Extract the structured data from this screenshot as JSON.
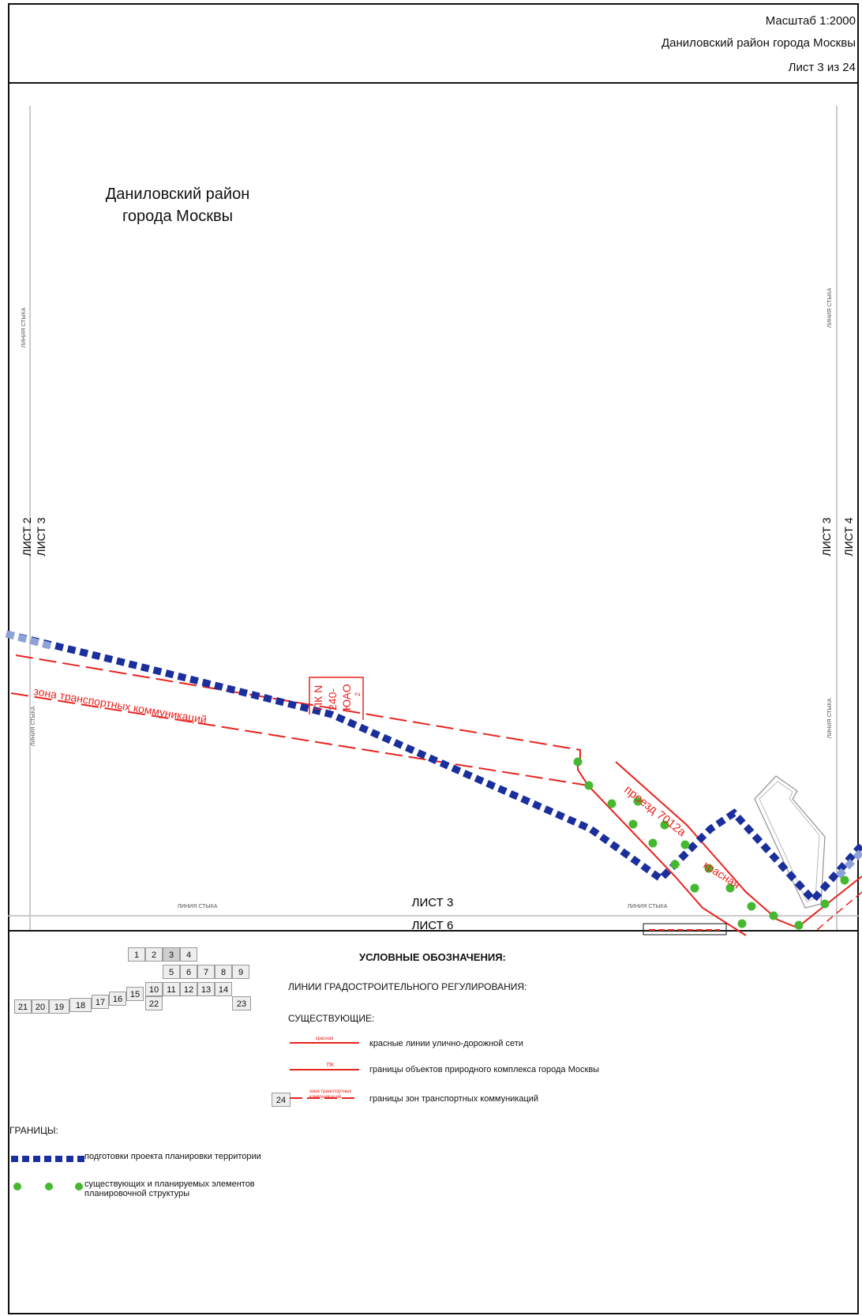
{
  "header": {
    "scale": "Масштаб 1:2000",
    "district": "Даниловский район города Москвы",
    "sheet": "Лист 3 из 24"
  },
  "map": {
    "district_label_line1": "Даниловский район",
    "district_label_line2": "города Москвы",
    "sheet_left_outer": "ЛИСТ 2",
    "sheet_left_inner": "ЛИСТ 3",
    "sheet_right_inner": "ЛИСТ 3",
    "sheet_right_outer": "ЛИСТ 4",
    "sheet_bottom_upper": "ЛИСТ 3",
    "sheet_bottom_lower": "ЛИСТ 6",
    "join_line_label": "ЛИНИЯ СТЫКА",
    "transport_zone_label": "зона транспортных коммуникаций",
    "pk_label": "ПК N 240-ЮАО",
    "pk_sub": "2",
    "road_label": "проезд 7012а",
    "red_label": "красная",
    "colors": {
      "red_line": "#e8231f",
      "planning_boundary": "#1b2f9c",
      "element_boundary": "#46b830"
    }
  },
  "legend": {
    "title": "УСЛОВНЫЕ ОБОЗНАЧЕНИЯ:",
    "regulation_heading": "ЛИНИИ ГРАДОСТРОИТЕЛЬНОГО РЕГУЛИРОВАНИЯ:",
    "existing_heading": "СУЩЕСТВУЮЩИЕ:",
    "red_lines": "красные линии улично-дорожной сети",
    "red_lines_mini": "красная",
    "natural_lines": "границы объектов природного комплекса города Москвы",
    "natural_mini": "ПК",
    "transport_lines": "границы зон транспортных коммуникаций",
    "transport_mini": "зона транспортных коммуникаций",
    "boundaries_heading": "ГРАНИЦЫ:",
    "planning_boundary": "подготовки проекта планировки территории",
    "elements_boundary": "существующих и планируемых элементов планировочной структуры"
  },
  "sheet_index": {
    "cells": [
      "1",
      "2",
      "3",
      "4",
      "5",
      "6",
      "7",
      "8",
      "9",
      "10",
      "11",
      "12",
      "13",
      "14",
      "15",
      "16",
      "17",
      "18",
      "19",
      "20",
      "21",
      "22",
      "23",
      "24"
    ],
    "current": "3"
  }
}
